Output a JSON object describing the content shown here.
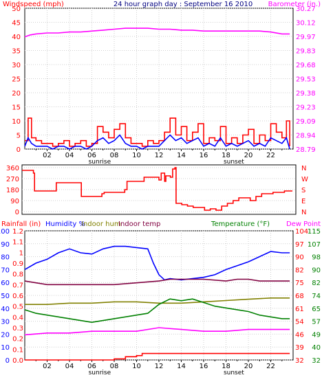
{
  "title": "24 hour graph day : September 16 2010",
  "colors": {
    "wind": "#ff0000",
    "gust": "#ff0000",
    "avg_wind": "#0000ff",
    "barometer": "#ff00ff",
    "direction": "#ff0000",
    "rain": "#ff0000",
    "humidity": "#0000ff",
    "indoor_hum": "#808000",
    "indoor_temp": "#800040",
    "temperature": "#008000",
    "dew_point": "#ff00ff"
  },
  "x_ticks": [
    "02",
    "04",
    "06",
    "08",
    "10",
    "12",
    "14",
    "16",
    "18",
    "20",
    "22"
  ],
  "sunrise_label": "sunrise",
  "sunset_label": "sunset",
  "chart_data": [
    {
      "type": "line",
      "title": "24 hour graph day : September 16 2010",
      "left_axis_label": "Windspeed (mph)",
      "right_axis_label": "Barometer (in.)",
      "left_ticks": [
        "50",
        "45",
        "40",
        "35",
        "30",
        "25",
        "20",
        "15",
        "10",
        "5",
        "0"
      ],
      "right_ticks": [
        "30.27",
        "30.12",
        "29.97",
        "29.83",
        "29.68",
        "29.53",
        "29.38",
        "29.23",
        "29.09",
        "28.94",
        "28.79"
      ],
      "ylim_left": [
        0,
        50
      ],
      "ylim_right": [
        28.79,
        30.27
      ],
      "xlim_hours": [
        0,
        24
      ],
      "series": [
        {
          "key": "barometer",
          "axis": "right",
          "x": [
            0,
            0.5,
            1,
            2,
            3,
            4,
            5,
            6,
            7,
            8,
            9,
            10,
            11,
            12,
            13,
            14,
            15,
            16,
            17,
            18,
            19,
            20,
            21,
            22,
            23,
            23.7
          ],
          "y": [
            29.97,
            29.99,
            30.0,
            30.01,
            30.01,
            30.02,
            30.02,
            30.03,
            30.04,
            30.05,
            30.06,
            30.06,
            30.06,
            30.05,
            30.05,
            30.04,
            30.04,
            30.03,
            30.03,
            30.03,
            30.03,
            30.03,
            30.03,
            30.02,
            30.0,
            30.0
          ]
        },
        {
          "key": "gust",
          "axis": "left",
          "x": [
            0,
            0.3,
            0.6,
            1,
            1.5,
            2,
            2.5,
            3,
            3.5,
            4,
            4.5,
            5,
            5.5,
            6,
            6.5,
            7,
            7.5,
            8,
            8.5,
            9,
            9.5,
            10,
            10.5,
            11,
            11.5,
            12,
            12.5,
            13,
            13.5,
            14,
            14.5,
            15,
            15.5,
            16,
            16.5,
            17,
            17.5,
            18,
            18.5,
            19,
            19.5,
            20,
            20.5,
            21,
            21.5,
            22,
            22.5,
            23,
            23.4,
            23.7
          ],
          "y": [
            3,
            11,
            4,
            3,
            2,
            2,
            1,
            2,
            3,
            1,
            2,
            3,
            1,
            2,
            8,
            6,
            4,
            7,
            9,
            4,
            2,
            2,
            1,
            3,
            2,
            3,
            6,
            11,
            5,
            8,
            3,
            6,
            9,
            2,
            4,
            3,
            8,
            2,
            4,
            2,
            5,
            7,
            2,
            5,
            3,
            9,
            6,
            4,
            10,
            1
          ]
        },
        {
          "key": "avg_wind",
          "axis": "left",
          "x": [
            0,
            0.3,
            0.6,
            1,
            1.5,
            2,
            2.5,
            3,
            3.5,
            4,
            4.5,
            5,
            5.5,
            6,
            6.5,
            7,
            7.5,
            8,
            8.5,
            9,
            9.5,
            10,
            10.5,
            11,
            11.5,
            12,
            12.5,
            13,
            13.5,
            14,
            14.5,
            15,
            15.5,
            16,
            16.5,
            17,
            17.5,
            18,
            18.5,
            19,
            19.5,
            20,
            20.5,
            21,
            21.5,
            22,
            22.5,
            23,
            23.4,
            23.7
          ],
          "y": [
            1,
            4,
            2,
            1,
            1,
            1,
            0,
            1,
            1,
            0,
            1,
            1,
            0,
            1,
            3,
            4,
            2,
            3,
            5,
            2,
            1,
            1,
            0,
            1,
            1,
            1,
            3,
            5,
            3,
            4,
            2,
            3,
            4,
            1,
            2,
            1,
            4,
            1,
            2,
            1,
            2,
            3,
            1,
            2,
            1,
            4,
            3,
            2,
            4,
            0
          ]
        }
      ]
    },
    {
      "type": "line",
      "left_ticks": [
        "360",
        "270",
        "180",
        "90",
        "0"
      ],
      "right_ticks": [
        "N",
        "W",
        "S",
        "E",
        "N"
      ],
      "ylim": [
        0,
        360
      ],
      "series": [
        {
          "key": "direction",
          "x": [
            0,
            1,
            1.1,
            2.8,
            3,
            5,
            5.2,
            7,
            7.2,
            9,
            9.2,
            10.5,
            10.7,
            12,
            12.2,
            12.5,
            12.6,
            13,
            13.2,
            13.4,
            13.5,
            14,
            14.5,
            15,
            16,
            16.5,
            17,
            17.5,
            18,
            18.5,
            19,
            20,
            20.5,
            21,
            22,
            23,
            23.7
          ],
          "y": [
            320,
            300,
            170,
            170,
            230,
            230,
            130,
            150,
            160,
            180,
            240,
            240,
            270,
            250,
            300,
            240,
            280,
            270,
            330,
            340,
            80,
            70,
            60,
            50,
            30,
            40,
            30,
            60,
            80,
            100,
            120,
            100,
            130,
            150,
            160,
            170,
            170
          ]
        }
      ]
    },
    {
      "type": "line",
      "left_axis_labels": [
        "Rainfall (in)",
        "Humidity %",
        "Indoor hum",
        "Indoor temp"
      ],
      "right_axis_labels": [
        "Temperature (°F)",
        "Dew Point"
      ],
      "rain_ticks": [
        "1.2",
        "1.1",
        "1",
        "0.9",
        "0.8",
        "0.7",
        "0.6",
        "0.5",
        "0.4",
        "0.3",
        "0.2",
        "0.1",
        "0.0"
      ],
      "humidity_ticks": [
        "100",
        "90",
        "80",
        "70",
        "60",
        "50",
        "40",
        "30",
        "20",
        "10",
        "0"
      ],
      "temp_f_ticks": [
        "104",
        "97",
        "90",
        "82",
        "75",
        "68",
        "61",
        "54",
        "46",
        "39",
        "32"
      ],
      "temp_f_ticks_outer": [
        "115",
        "107",
        "98",
        "90",
        "82",
        "74",
        "65",
        "57",
        "49",
        "40",
        "32"
      ],
      "ylim_rain": [
        0,
        1.2
      ],
      "ylim_humidity": [
        0,
        100
      ],
      "ylim_temp": [
        32,
        104
      ],
      "series": [
        {
          "key": "humidity",
          "axis": "humidity",
          "x": [
            0,
            1,
            2,
            3,
            4,
            5,
            6,
            7,
            8,
            9,
            10,
            11,
            11.5,
            12,
            12.5,
            13,
            14,
            15,
            16,
            17,
            18,
            19,
            20,
            21,
            22,
            23,
            23.7
          ],
          "y": [
            70,
            75,
            78,
            83,
            86,
            83,
            82,
            86,
            88,
            88,
            87,
            86,
            75,
            66,
            62,
            63,
            62,
            63,
            64,
            66,
            70,
            73,
            76,
            80,
            84,
            83,
            83
          ]
        },
        {
          "key": "indoor_hum",
          "axis": "humidity",
          "x": [
            0,
            2,
            4,
            6,
            8,
            10,
            12,
            14,
            16,
            18,
            20,
            22,
            23.7
          ],
          "y": [
            43,
            43,
            44,
            44,
            45,
            45,
            44,
            44,
            45,
            46,
            47,
            48,
            48
          ]
        },
        {
          "key": "indoor_temp",
          "axis": "temp",
          "x": [
            0,
            1,
            2,
            4,
            6,
            8,
            10,
            12,
            13,
            14,
            16,
            18,
            19,
            20,
            21,
            22,
            23.7
          ],
          "y": [
            76,
            75,
            74,
            74,
            74,
            74,
            75,
            76,
            77,
            77,
            77,
            76,
            77,
            77,
            76,
            76,
            76
          ]
        },
        {
          "key": "temperature",
          "axis": "temp",
          "x": [
            0,
            1,
            2,
            3,
            4,
            5,
            6,
            7,
            8,
            9,
            10,
            11,
            12,
            13,
            14,
            15,
            16,
            17,
            18,
            19,
            20,
            21,
            22,
            23,
            23.7
          ],
          "y": [
            60,
            58,
            57,
            56,
            55,
            54,
            53,
            54,
            55,
            56,
            57,
            58,
            63,
            66,
            65,
            66,
            64,
            62,
            61,
            60,
            59,
            57,
            56,
            55,
            55
          ]
        },
        {
          "key": "dew_point",
          "axis": "temp",
          "x": [
            0,
            2,
            4,
            6,
            8,
            10,
            12,
            14,
            16,
            18,
            20,
            22,
            23.7
          ],
          "y": [
            46,
            47,
            47,
            48,
            48,
            48,
            50,
            49,
            48,
            48,
            49,
            49,
            49
          ]
        },
        {
          "key": "rain",
          "axis": "rain",
          "x": [
            0,
            6,
            7,
            8,
            9,
            10,
            10.5,
            12,
            14,
            16,
            18,
            20,
            22,
            23.7
          ],
          "y": [
            0.0,
            0.0,
            0.0,
            0.01,
            0.03,
            0.04,
            0.06,
            0.06,
            0.06,
            0.06,
            0.06,
            0.06,
            0.06,
            0.06
          ]
        }
      ]
    }
  ]
}
